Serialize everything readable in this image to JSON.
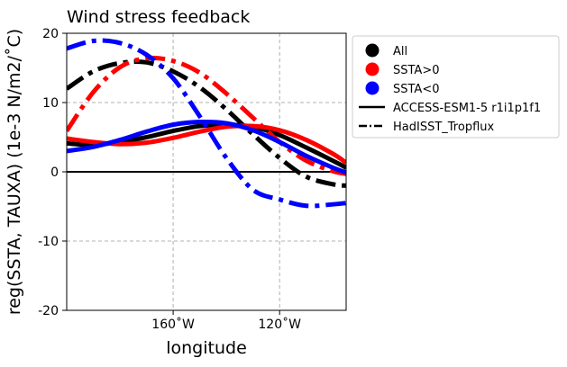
{
  "chart_data": {
    "type": "line",
    "title": "Wind stress feedback",
    "xlabel": "longitude",
    "ylabel": "reg(SSTA, TAUXA) (1e-3 N/m2/˚C)",
    "xlim": [
      -200,
      -95
    ],
    "ylim": [
      -20,
      20
    ],
    "xticks": [
      -160,
      -120
    ],
    "xtick_labels": [
      "160˚W",
      "120˚W"
    ],
    "yticks": [
      -20,
      -10,
      0,
      10,
      20
    ],
    "ytick_labels": [
      "-20",
      "-10",
      "0",
      "10",
      "20"
    ],
    "grid": true,
    "legend_position": "outside-top-right",
    "zero_line": 0,
    "legend": {
      "markers": [
        {
          "label": "All",
          "color": "#000000"
        },
        {
          "label": "SSTA>0",
          "color": "#ff0000"
        },
        {
          "label": "SSTA<0",
          "color": "#0000ff"
        }
      ],
      "lines": [
        {
          "label": "ACCESS-ESM1-5 r1i1p1f1",
          "style": "solid"
        },
        {
          "label": "HadISST_Tropflux",
          "style": "dashdot"
        }
      ]
    },
    "x": [
      -200,
      -190,
      -180,
      -170,
      -160,
      -150,
      -140,
      -130,
      -120,
      -110,
      -100,
      -95
    ],
    "series": [
      {
        "group": "All",
        "dataset": "ACCESS-ESM1-5 r1i1p1f1",
        "color": "#000000",
        "style": "solid",
        "values": [
          4.1,
          3.9,
          4.3,
          5.0,
          5.9,
          6.6,
          6.8,
          6.5,
          5.3,
          3.5,
          1.6,
          0.6
        ]
      },
      {
        "group": "All",
        "dataset": "HadISST_Tropflux",
        "color": "#000000",
        "style": "dashdot",
        "values": [
          12.0,
          14.5,
          15.7,
          15.8,
          14.5,
          12.2,
          9.0,
          5.4,
          2.0,
          -0.7,
          -1.8,
          -2.0
        ]
      },
      {
        "group": "SSTA>0",
        "dataset": "ACCESS-ESM1-5 r1i1p1f1",
        "color": "#ff0000",
        "style": "solid",
        "values": [
          4.8,
          4.3,
          4.0,
          4.2,
          4.9,
          5.8,
          6.5,
          6.6,
          6.0,
          4.6,
          2.6,
          1.3
        ]
      },
      {
        "group": "SSTA>0",
        "dataset": "HadISST_Tropflux",
        "color": "#ff0000",
        "style": "dashdot",
        "values": [
          5.9,
          11.5,
          15.1,
          16.4,
          16.0,
          14.3,
          11.3,
          7.8,
          4.3,
          1.6,
          0.1,
          -0.3
        ]
      },
      {
        "group": "SSTA<0",
        "dataset": "ACCESS-ESM1-5 r1i1p1f1",
        "color": "#0000ff",
        "style": "solid",
        "values": [
          3.0,
          3.6,
          4.6,
          5.8,
          6.8,
          7.2,
          7.0,
          6.0,
          4.3,
          2.3,
          0.6,
          -0.1
        ]
      },
      {
        "group": "SSTA<0",
        "dataset": "HadISST_Tropflux",
        "color": "#0000ff",
        "style": "dashdot",
        "values": [
          17.8,
          18.9,
          18.6,
          16.9,
          13.5,
          8.0,
          2.0,
          -2.6,
          -4.0,
          -4.9,
          -4.7,
          -4.5
        ]
      }
    ]
  }
}
